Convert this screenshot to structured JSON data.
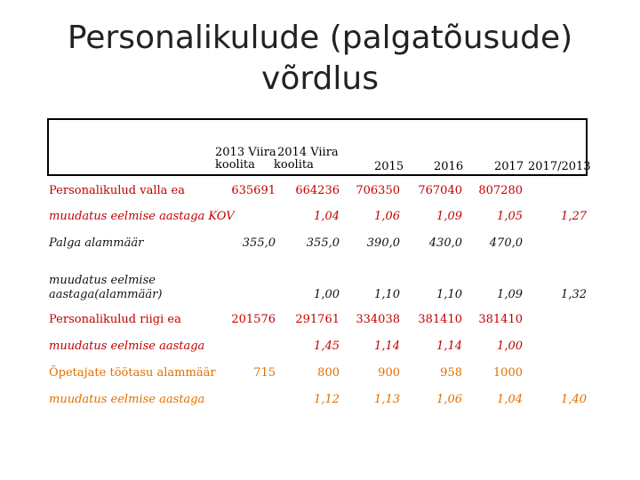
{
  "title_line1": "Personalikulude (palgatõusude)",
  "title_line2": "võrdlus",
  "header": {
    "col2013_a": "2013 Viira",
    "col2013_b": "koolita",
    "col2014_a": "2014 Viira",
    "col2014_b": "koolita",
    "col2015": "2015",
    "col2016": "2016",
    "col2017": "2017",
    "col2017_2013": "2017/2013"
  },
  "rows": [
    {
      "label": "Personalikulud valla ea",
      "values": [
        "635691",
        "664236",
        "706350",
        "767040",
        "807280",
        ""
      ]
    },
    {
      "label": "muudatus eelmise aastaga KOV",
      "values": [
        "",
        "1,04",
        "1,06",
        "1,09",
        "1,05",
        "1,27"
      ]
    },
    {
      "label": "Palga alammäär",
      "values": [
        "355,0",
        "355,0",
        "390,0",
        "430,0",
        "470,0",
        ""
      ]
    },
    {
      "label_line1": "muudatus eelmise",
      "label_line2": "aastaga(alammäär)",
      "values": [
        "",
        "1,00",
        "1,10",
        "1,10",
        "1,09",
        "1,32"
      ]
    },
    {
      "label": "Personalikulud riigi ea",
      "values": [
        "201576",
        "291761",
        "334038",
        "381410",
        "381410",
        ""
      ]
    },
    {
      "label": "muudatus eelmise aastaga",
      "values": [
        "",
        "1,45",
        "1,14",
        "1,14",
        "1,00",
        ""
      ]
    },
    {
      "label": "Õpetajate töötasu alammäär",
      "values": [
        "715",
        "800",
        "900",
        "958",
        "1000",
        ""
      ]
    },
    {
      "label": "muudatus eelmise aastaga",
      "values": [
        "",
        "1,12",
        "1,13",
        "1,06",
        "1,04",
        "1,40"
      ]
    }
  ]
}
